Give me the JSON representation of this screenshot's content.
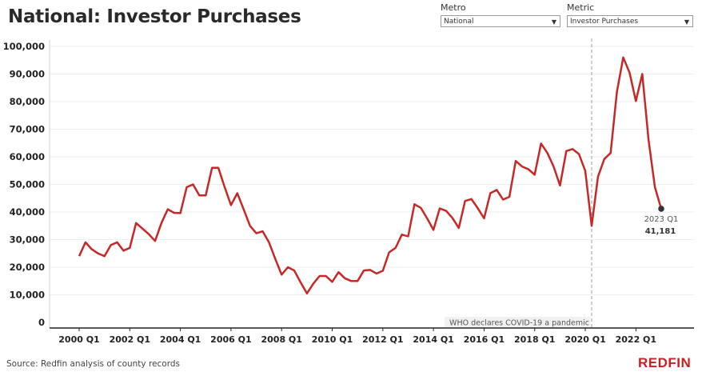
{
  "header": {
    "title": "National: Investor Purchases"
  },
  "filters": {
    "metro": {
      "label": "Metro",
      "value": "National"
    },
    "metric": {
      "label": "Metric",
      "value": "Investor Purchases"
    }
  },
  "footer": {
    "source": "Source: Redfin analysis of county records",
    "logo": "REDFIN"
  },
  "colors": {
    "line": "#c62828",
    "axis": "#222222",
    "grid": "#eeeeee",
    "annotation_line": "#9e9e9e"
  },
  "chart_data": {
    "type": "line",
    "title": "National: Investor Purchases",
    "xlabel": "",
    "ylabel": "",
    "ylim": [
      0,
      100000
    ],
    "yticks": [
      {
        "value": 0,
        "label": "0"
      },
      {
        "value": 10000,
        "label": "10,000"
      },
      {
        "value": 20000,
        "label": "20,000"
      },
      {
        "value": 30000,
        "label": "30,000"
      },
      {
        "value": 40000,
        "label": "40,000"
      },
      {
        "value": 50000,
        "label": "50,000"
      },
      {
        "value": 60000,
        "label": "60,000"
      },
      {
        "value": 70000,
        "label": "70,000"
      },
      {
        "value": 80000,
        "label": "80,000"
      },
      {
        "value": 90000,
        "label": "90,000"
      },
      {
        "value": 100000,
        "label": "100,000"
      }
    ],
    "xticks": [
      "2000 Q1",
      "2002 Q1",
      "2004 Q1",
      "2006 Q1",
      "2008 Q1",
      "2010 Q1",
      "2012 Q1",
      "2014 Q1",
      "2016 Q1",
      "2018 Q1",
      "2020 Q1",
      "2022 Q1"
    ],
    "grid": "horizontal",
    "series": [
      {
        "x": [
          "2000 Q1",
          "2000 Q2",
          "2000 Q3",
          "2000 Q4",
          "2001 Q1",
          "2001 Q2",
          "2001 Q3",
          "2001 Q4",
          "2002 Q1",
          "2002 Q2",
          "2002 Q3",
          "2002 Q4",
          "2003 Q1",
          "2003 Q2",
          "2003 Q3",
          "2003 Q4",
          "2004 Q1",
          "2004 Q2",
          "2004 Q3",
          "2004 Q4",
          "2005 Q1",
          "2005 Q2",
          "2005 Q3",
          "2005 Q4",
          "2006 Q1",
          "2006 Q2",
          "2006 Q3",
          "2006 Q4",
          "2007 Q1",
          "2007 Q2",
          "2007 Q3",
          "2007 Q4",
          "2008 Q1",
          "2008 Q2",
          "2008 Q3",
          "2008 Q4",
          "2009 Q1",
          "2009 Q2",
          "2009 Q3",
          "2009 Q4",
          "2010 Q1",
          "2010 Q2",
          "2010 Q3",
          "2010 Q4",
          "2011 Q1",
          "2011 Q2",
          "2011 Q3",
          "2011 Q4",
          "2012 Q1",
          "2012 Q2",
          "2012 Q3",
          "2012 Q4",
          "2013 Q1",
          "2013 Q2",
          "2013 Q3",
          "2013 Q4",
          "2014 Q1",
          "2014 Q2",
          "2014 Q3",
          "2014 Q4",
          "2015 Q1",
          "2015 Q2",
          "2015 Q3",
          "2015 Q4",
          "2016 Q1",
          "2016 Q2",
          "2016 Q3",
          "2016 Q4",
          "2017 Q1",
          "2017 Q2",
          "2017 Q3",
          "2017 Q4",
          "2018 Q1",
          "2018 Q2",
          "2018 Q3",
          "2018 Q4",
          "2019 Q1",
          "2019 Q2",
          "2019 Q3",
          "2019 Q4",
          "2020 Q1",
          "2020 Q2",
          "2020 Q3",
          "2020 Q4",
          "2021 Q1",
          "2021 Q2",
          "2021 Q3",
          "2021 Q4",
          "2022 Q1",
          "2022 Q2",
          "2022 Q3",
          "2022 Q4",
          "2023 Q1"
        ],
        "values": [
          24000,
          29000,
          26500,
          25000,
          24000,
          28000,
          29000,
          26000,
          27000,
          36000,
          34000,
          32000,
          29500,
          36000,
          41000,
          39700,
          39600,
          49000,
          50000,
          46000,
          46000,
          56000,
          56000,
          49000,
          42500,
          46800,
          41000,
          35000,
          32300,
          33000,
          29000,
          23000,
          17300,
          20000,
          18800,
          14500,
          10500,
          14000,
          16800,
          16800,
          14700,
          18200,
          16000,
          15000,
          15000,
          18800,
          19000,
          17700,
          18700,
          25400,
          27000,
          31800,
          31200,
          42800,
          41500,
          37700,
          33500,
          41300,
          40400,
          37800,
          34200,
          44000,
          44700,
          41400,
          37700,
          46800,
          48000,
          44500,
          45500,
          58500,
          56500,
          55500,
          53500,
          64800,
          61400,
          56400,
          49600,
          62100,
          62800,
          61000,
          54900,
          35000,
          52800,
          59200,
          61400,
          83600,
          96000,
          90500,
          80200,
          90000,
          66000,
          49000,
          41181
        ]
      }
    ],
    "annotations": [
      {
        "type": "vline",
        "x": "2020 Q2",
        "label": "WHO declares COVID-19 a pandemic"
      },
      {
        "type": "point",
        "x": "2023 Q1",
        "label": "2023 Q1",
        "value_label": "41,181"
      }
    ]
  }
}
